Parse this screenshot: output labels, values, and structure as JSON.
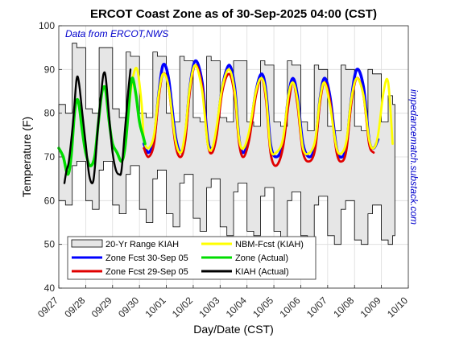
{
  "chart_data": {
    "type": "line",
    "title": "ERCOT Coast Zone as of 30-Sep-2025 04:00 (CST)",
    "xlabel": "Day/Date (CST)",
    "ylabel": "Temperature (F)",
    "annotation": "Data from ERCOT,NWS",
    "side_text": "impedancematch.substack.com",
    "x_unit": "hours since 09/27 00:00",
    "xlim": [
      0,
      312
    ],
    "ylim": [
      40,
      100
    ],
    "yticks": [
      40,
      50,
      60,
      70,
      80,
      90,
      100
    ],
    "xtick_labels": [
      "09/27",
      "09/28",
      "09/29",
      "09/30",
      "10/01",
      "10/02",
      "10/03",
      "10/04",
      "10/05",
      "10/06",
      "10/07",
      "10/08",
      "10/09",
      "10/10"
    ],
    "grid": true,
    "legend_position": "bottom-left",
    "colors": {
      "range_fill": "#e6e6e6",
      "zone_fcst_30": "#0000ff",
      "zone_fcst_29": "#e00000",
      "nbm": "#ffff00",
      "zone_actual": "#00dd00",
      "kiah_actual": "#000000"
    },
    "range_kiah": {
      "name": "20-Yr Range KIAH",
      "x": [
        0,
        6,
        12,
        16,
        24,
        30,
        36,
        40,
        48,
        54,
        60,
        64,
        72,
        78,
        84,
        88,
        96,
        102,
        108,
        112,
        120,
        126,
        132,
        136,
        144,
        150,
        156,
        160,
        168,
        174,
        180,
        184,
        192,
        198,
        204,
        208,
        216,
        222,
        228,
        232,
        240,
        246,
        252,
        256,
        264,
        270,
        276,
        280,
        288,
        294,
        298
      ],
      "low": [
        60,
        59,
        68,
        69,
        60,
        58,
        67,
        69,
        59,
        57,
        66,
        68,
        58,
        55,
        65,
        67,
        57,
        54,
        64,
        66,
        56,
        53,
        63,
        65,
        54,
        52,
        62,
        64,
        53,
        52,
        61,
        63,
        53,
        51,
        60,
        62,
        52,
        51,
        59,
        61,
        52,
        50,
        58,
        60,
        51,
        50,
        57,
        59,
        51,
        50,
        52
      ],
      "high": [
        82,
        80,
        96,
        95,
        81,
        80,
        95,
        95,
        81,
        79,
        94,
        93,
        80,
        79,
        94,
        93,
        80,
        78,
        93,
        92,
        79,
        78,
        93,
        92,
        79,
        78,
        92,
        92,
        78,
        77,
        92,
        91,
        78,
        77,
        92,
        91,
        78,
        76,
        91,
        90,
        77,
        76,
        91,
        90,
        77,
        76,
        90,
        89,
        78,
        84,
        82
      ]
    },
    "series": [
      {
        "name": "Zone Fcst 30-Sep 05",
        "x": [
          76,
          80,
          85,
          89,
          93,
          98,
          104,
          109,
          113,
          117,
          122,
          128,
          133,
          137,
          141,
          146,
          152,
          157,
          161,
          165,
          170,
          176,
          181,
          185,
          189,
          194,
          200,
          205,
          209,
          213,
          218,
          224,
          229,
          233,
          237,
          242,
          248,
          253,
          257,
          261,
          266,
          272,
          277,
          281,
          285
        ],
        "y": [
          73,
          71,
          74,
          84,
          91,
          88,
          75,
          71,
          75,
          86,
          92,
          87,
          74,
          72,
          76,
          86,
          91,
          86,
          74,
          71,
          75,
          85,
          89,
          85,
          73,
          70,
          73,
          84,
          88,
          84,
          73,
          70,
          73,
          83,
          88,
          84,
          72,
          70,
          73,
          83,
          90,
          86,
          74,
          72,
          74
        ]
      },
      {
        "name": "Zone Fcst 29-Sep 05",
        "x": [
          76,
          80,
          85,
          89,
          93,
          98,
          104,
          109,
          113,
          117,
          122,
          128,
          133,
          137,
          141,
          146,
          152,
          157,
          161,
          165,
          170,
          176,
          181,
          185,
          189,
          194,
          200,
          205,
          209,
          213,
          218,
          224,
          229,
          233,
          237,
          242,
          248,
          253,
          257,
          261,
          266,
          272,
          277,
          281
        ],
        "y": [
          72,
          70,
          73,
          83,
          89,
          86,
          73,
          70,
          74,
          85,
          91,
          86,
          73,
          71,
          75,
          85,
          89,
          84,
          73,
          70,
          74,
          84,
          88,
          83,
          71,
          68,
          72,
          82,
          87,
          82,
          71,
          69,
          72,
          82,
          87,
          83,
          71,
          69,
          72,
          82,
          88,
          84,
          73,
          71
        ]
      },
      {
        "name": "NBM-Fcst (KIAH)",
        "x": [
          58,
          62,
          66,
          70,
          74,
          76,
          80,
          85,
          89,
          93,
          98,
          104,
          109,
          113,
          117,
          122,
          128,
          133,
          137,
          141,
          146,
          152,
          157,
          161,
          165,
          170,
          176,
          181,
          185,
          189,
          194,
          200,
          205,
          209,
          213,
          218,
          224,
          229,
          233,
          237,
          242,
          248,
          253,
          257,
          261,
          266,
          272,
          277,
          281,
          285,
          290,
          294,
          298
        ],
        "y": [
          70,
          80,
          88,
          90,
          82,
          74,
          72,
          75,
          84,
          89,
          86,
          74,
          71,
          76,
          86,
          91,
          85,
          73,
          72,
          77,
          86,
          90,
          85,
          74,
          72,
          76,
          85,
          88,
          84,
          72,
          71,
          74,
          84,
          87,
          83,
          72,
          71,
          74,
          83,
          87,
          82,
          72,
          71,
          74,
          83,
          88,
          84,
          74,
          72,
          75,
          85,
          87,
          73
        ]
      },
      {
        "name": "Zone (Actual)",
        "x": [
          0,
          4,
          8,
          11,
          14,
          16,
          18,
          21,
          24,
          28,
          32,
          35,
          38,
          40,
          42,
          45,
          48,
          52,
          56,
          59,
          62,
          64,
          66,
          69,
          72,
          75,
          77
        ],
        "y": [
          72,
          70,
          66,
          70,
          80,
          83,
          82,
          76,
          71,
          68,
          70,
          77,
          84,
          86,
          85,
          78,
          73,
          71,
          69,
          72,
          80,
          86,
          88,
          84,
          78,
          75,
          73
        ]
      },
      {
        "name": "KIAH (Actual)",
        "x": [
          5,
          7,
          9,
          12,
          14,
          16,
          18,
          21,
          24,
          27,
          30,
          32,
          35,
          38,
          40,
          42,
          45,
          48,
          51,
          54,
          56,
          59,
          62,
          64
        ],
        "y": [
          64,
          67,
          69,
          76,
          82,
          88,
          87,
          80,
          73,
          66,
          64,
          67,
          77,
          85,
          89,
          88,
          79,
          71,
          67,
          66,
          67,
          76,
          85,
          90
        ]
      }
    ]
  }
}
